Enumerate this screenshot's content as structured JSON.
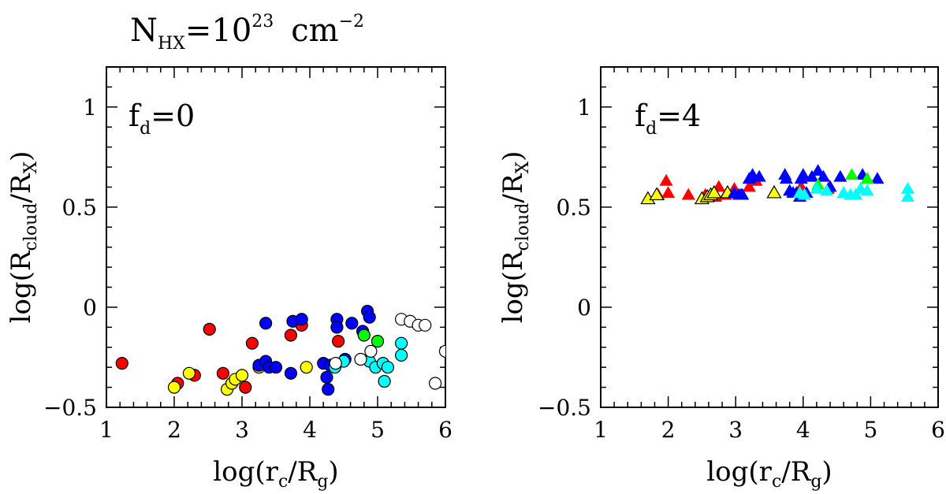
{
  "figure": {
    "title": {
      "main": "N",
      "sub": "HX",
      "eq": "=10",
      "sup": "23",
      "unit": "cm",
      "unit_sup": "−2"
    }
  },
  "chart_data": [
    {
      "type": "scatter",
      "panel": "left",
      "annotation": {
        "main": "f",
        "sub": "d",
        "rest": "=0"
      },
      "xlabel": {
        "pre": "log(r",
        "sub1": "c",
        "mid": "/R",
        "sub2": "g",
        "post": ")"
      },
      "ylabel": {
        "pre": "log(R",
        "sub1": "cloud",
        "mid": "/R",
        "sub2": "X",
        "post": ")"
      },
      "xlim": [
        1,
        6
      ],
      "ylim": [
        -0.5,
        1.2
      ],
      "xticks": [
        1,
        2,
        3,
        4,
        5,
        6
      ],
      "xtick_labels": [
        "1",
        "2",
        "3",
        "4",
        "5",
        "6"
      ],
      "yticks": [
        -0.5,
        0,
        0.5,
        1
      ],
      "ytick_labels": [
        "−0.5",
        "0",
        "0.5",
        "1"
      ],
      "marker": "circle",
      "series": [
        {
          "name": "red",
          "color": "#ff0000",
          "points": [
            [
              1.23,
              -0.28
            ],
            [
              2.05,
              -0.38
            ],
            [
              2.3,
              -0.34
            ],
            [
              2.52,
              -0.11
            ],
            [
              2.72,
              -0.33
            ],
            [
              3.05,
              -0.4
            ],
            [
              3.15,
              -0.18
            ],
            [
              3.72,
              -0.14
            ],
            [
              3.88,
              -0.09
            ],
            [
              4.42,
              -0.17
            ]
          ]
        },
        {
          "name": "yellow",
          "color": "#ffff00",
          "points": [
            [
              2.0,
              -0.4
            ],
            [
              2.22,
              -0.33
            ],
            [
              2.78,
              -0.41
            ],
            [
              2.85,
              -0.38
            ],
            [
              2.9,
              -0.36
            ],
            [
              3.0,
              -0.34
            ],
            [
              3.25,
              -0.3
            ],
            [
              3.95,
              -0.3
            ]
          ]
        },
        {
          "name": "blue",
          "color": "#0000ff",
          "points": [
            [
              3.25,
              -0.29
            ],
            [
              3.35,
              -0.08
            ],
            [
              3.35,
              -0.27
            ],
            [
              3.4,
              -0.3
            ],
            [
              3.5,
              -0.3
            ],
            [
              3.72,
              -0.33
            ],
            [
              3.75,
              -0.07
            ],
            [
              3.88,
              -0.06
            ],
            [
              4.2,
              -0.28
            ],
            [
              4.25,
              -0.35
            ],
            [
              4.27,
              -0.41
            ],
            [
              4.3,
              -0.29
            ],
            [
              4.4,
              -0.06
            ],
            [
              4.4,
              -0.1
            ],
            [
              4.52,
              -0.26
            ],
            [
              4.62,
              -0.08
            ],
            [
              4.78,
              -0.12
            ],
            [
              4.85,
              -0.02
            ],
            [
              4.88,
              -0.05
            ]
          ]
        },
        {
          "name": "green",
          "color": "#00ff00",
          "points": [
            [
              4.8,
              -0.14
            ],
            [
              5.0,
              -0.17
            ]
          ]
        },
        {
          "name": "cyan",
          "color": "#00ffff",
          "points": [
            [
              4.37,
              -0.3
            ],
            [
              4.5,
              -0.27
            ],
            [
              4.88,
              -0.27
            ],
            [
              4.97,
              -0.3
            ],
            [
              5.08,
              -0.28
            ],
            [
              5.1,
              -0.37
            ],
            [
              5.15,
              -0.3
            ],
            [
              5.35,
              -0.18
            ],
            [
              5.35,
              -0.24
            ]
          ]
        },
        {
          "name": "open",
          "color": "#ffffff",
          "points": [
            [
              4.38,
              -0.28
            ],
            [
              4.75,
              -0.26
            ],
            [
              4.9,
              -0.22
            ],
            [
              5.35,
              -0.06
            ],
            [
              5.48,
              -0.07
            ],
            [
              5.6,
              -0.09
            ],
            [
              5.7,
              -0.09
            ],
            [
              5.85,
              -0.38
            ],
            [
              6.0,
              -0.22
            ]
          ]
        }
      ]
    },
    {
      "type": "scatter",
      "panel": "right",
      "annotation": {
        "main": "f",
        "sub": "d",
        "rest": "=4"
      },
      "xlabel": {
        "pre": "log(r",
        "sub1": "c",
        "mid": "/R",
        "sub2": "g",
        "post": ")"
      },
      "ylabel": {
        "pre": "log(R",
        "sub1": "cloud",
        "mid": "/R",
        "sub2": "X",
        "post": ")"
      },
      "xlim": [
        1,
        6
      ],
      "ylim": [
        -0.5,
        1.2
      ],
      "xticks": [
        1,
        2,
        3,
        4,
        5,
        6
      ],
      "xtick_labels": [
        "1",
        "2",
        "3",
        "4",
        "5",
        "6"
      ],
      "yticks": [
        -0.5,
        0,
        0.5,
        1
      ],
      "ytick_labels": [
        "−0.5",
        "0",
        "0.5",
        "1"
      ],
      "marker": "triangle",
      "series": [
        {
          "name": "red",
          "color": "#ff0000",
          "points": [
            [
              1.85,
              0.56
            ],
            [
              1.97,
              0.63
            ],
            [
              2.0,
              0.57
            ],
            [
              2.3,
              0.56
            ],
            [
              2.55,
              0.56
            ],
            [
              2.7,
              0.55
            ],
            [
              2.75,
              0.6
            ],
            [
              2.85,
              0.56
            ],
            [
              2.98,
              0.59
            ],
            [
              3.2,
              0.6
            ],
            [
              3.3,
              0.63
            ],
            [
              3.97,
              0.6
            ],
            [
              4.37,
              0.59
            ]
          ]
        },
        {
          "name": "yellow",
          "color": "#ffff00",
          "points": [
            [
              1.7,
              0.54
            ],
            [
              1.83,
              0.56
            ],
            [
              2.5,
              0.54
            ],
            [
              2.58,
              0.55
            ],
            [
              2.63,
              0.56
            ],
            [
              2.68,
              0.57
            ],
            [
              2.88,
              0.57
            ],
            [
              3.57,
              0.57
            ]
          ]
        },
        {
          "name": "blue",
          "color": "#0000ff",
          "points": [
            [
              2.98,
              0.57
            ],
            [
              3.05,
              0.56
            ],
            [
              3.08,
              0.56
            ],
            [
              3.1,
              0.56
            ],
            [
              3.2,
              0.64
            ],
            [
              3.25,
              0.66
            ],
            [
              3.35,
              0.65
            ],
            [
              3.73,
              0.66
            ],
            [
              3.75,
              0.64
            ],
            [
              3.8,
              0.58
            ],
            [
              3.85,
              0.57
            ],
            [
              3.9,
              0.57
            ],
            [
              3.95,
              0.55
            ],
            [
              3.97,
              0.64
            ],
            [
              4.0,
              0.66
            ],
            [
              4.05,
              0.57
            ],
            [
              4.13,
              0.65
            ],
            [
              4.22,
              0.68
            ],
            [
              4.3,
              0.65
            ],
            [
              4.4,
              0.6
            ],
            [
              4.55,
              0.65
            ],
            [
              4.88,
              0.66
            ],
            [
              5.1,
              0.64
            ]
          ]
        },
        {
          "name": "green",
          "color": "#00ff00",
          "points": [
            [
              4.22,
              0.61
            ],
            [
              4.72,
              0.66
            ],
            [
              4.95,
              0.64
            ]
          ]
        },
        {
          "name": "cyan",
          "color": "#00ffff",
          "points": [
            [
              3.95,
              0.57
            ],
            [
              4.02,
              0.56
            ],
            [
              4.2,
              0.59
            ],
            [
              4.35,
              0.58
            ],
            [
              4.6,
              0.57
            ],
            [
              4.7,
              0.56
            ],
            [
              4.78,
              0.56
            ],
            [
              4.85,
              0.59
            ],
            [
              4.95,
              0.58
            ],
            [
              5.55,
              0.59
            ],
            [
              5.55,
              0.55
            ]
          ]
        }
      ]
    }
  ]
}
